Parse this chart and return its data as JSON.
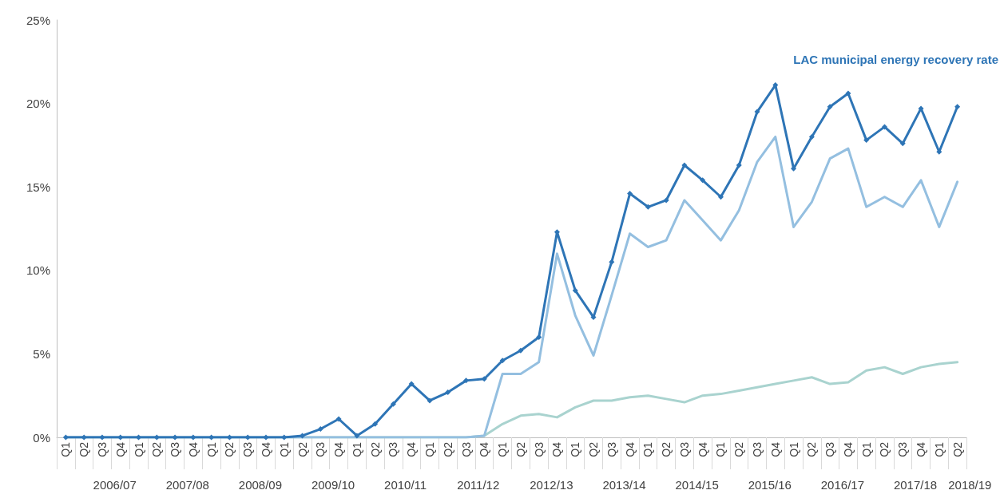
{
  "chart_data": {
    "type": "line",
    "categories": [
      "Q1",
      "Q2",
      "Q3",
      "Q4",
      "Q1",
      "Q2",
      "Q3",
      "Q4",
      "Q1",
      "Q2",
      "Q3",
      "Q4",
      "Q1",
      "Q2",
      "Q3",
      "Q4",
      "Q1",
      "Q2",
      "Q3",
      "Q4",
      "Q1",
      "Q2",
      "Q3",
      "Q4",
      "Q1",
      "Q2",
      "Q3",
      "Q4",
      "Q1",
      "Q2",
      "Q3",
      "Q4",
      "Q1",
      "Q2",
      "Q3",
      "Q4",
      "Q1",
      "Q2",
      "Q3",
      "Q4",
      "Q1",
      "Q2",
      "Q3",
      "Q4",
      "Q1",
      "Q2",
      "Q3",
      "Q4",
      "Q1",
      "Q2"
    ],
    "series": [
      {
        "color": "#a9d3cf",
        "marker": "none",
        "values": [
          0,
          0,
          0,
          0,
          0,
          0,
          0,
          0,
          0,
          0,
          0,
          0,
          0,
          0,
          0,
          0,
          0,
          0,
          0,
          0,
          0,
          0,
          0,
          0.1,
          0.8,
          1.3,
          1.4,
          1.2,
          1.8,
          2.2,
          2.2,
          2.4,
          2.5,
          2.3,
          2.1,
          2.5,
          2.6,
          2.8,
          3.0,
          3.2,
          3.4,
          3.6,
          3.2,
          3.3,
          4.0,
          4.2,
          3.8,
          4.2,
          4.4,
          4.5
        ]
      },
      {
        "color": "#94bfe0",
        "marker": "none",
        "values": [
          0,
          0,
          0,
          0,
          0,
          0,
          0,
          0,
          0,
          0,
          0,
          0,
          0,
          0,
          0,
          0,
          0,
          0,
          0,
          0,
          0,
          0,
          0,
          0.1,
          3.8,
          3.8,
          4.5,
          11.0,
          7.3,
          4.9,
          8.5,
          12.2,
          11.4,
          11.8,
          14.2,
          13.0,
          11.8,
          13.6,
          16.5,
          18.0,
          12.6,
          14.1,
          16.7,
          17.3,
          13.8,
          14.4,
          13.8,
          15.4,
          12.6,
          15.3
        ]
      },
      {
        "name": "LAC municipal energy recovery rate",
        "color": "#2e75b6",
        "marker": "diamond",
        "values": [
          0,
          0,
          0,
          0,
          0,
          0,
          0,
          0,
          0,
          0,
          0,
          0,
          0,
          0.1,
          0.5,
          1.1,
          0.1,
          0.8,
          2.0,
          3.2,
          2.2,
          2.7,
          3.4,
          3.5,
          4.6,
          5.2,
          6.0,
          12.3,
          8.8,
          7.2,
          10.5,
          14.6,
          13.8,
          14.2,
          16.3,
          15.4,
          14.4,
          16.3,
          19.5,
          21.1,
          16.1,
          18.0,
          19.8,
          20.6,
          17.8,
          18.6,
          17.6,
          19.7,
          17.1,
          19.8
        ]
      }
    ],
    "annotations": [
      "2006/07",
      "2007/08",
      "2008/09",
      "2009/10",
      "2010/11",
      "2011/12",
      "2012/13",
      "2013/14",
      "2014/15",
      "2015/16",
      "2016/17",
      "2017/18",
      "2018/19"
    ],
    "ylim": [
      0,
      25
    ],
    "yticks": [
      {
        "value": 0,
        "label": "0%"
      },
      {
        "value": 5,
        "label": "5%"
      },
      {
        "value": 10,
        "label": "10%"
      },
      {
        "value": 15,
        "label": "15%"
      },
      {
        "value": 20,
        "label": "20%"
      },
      {
        "value": 25,
        "label": "25%"
      }
    ],
    "grid": false,
    "legend": false
  }
}
